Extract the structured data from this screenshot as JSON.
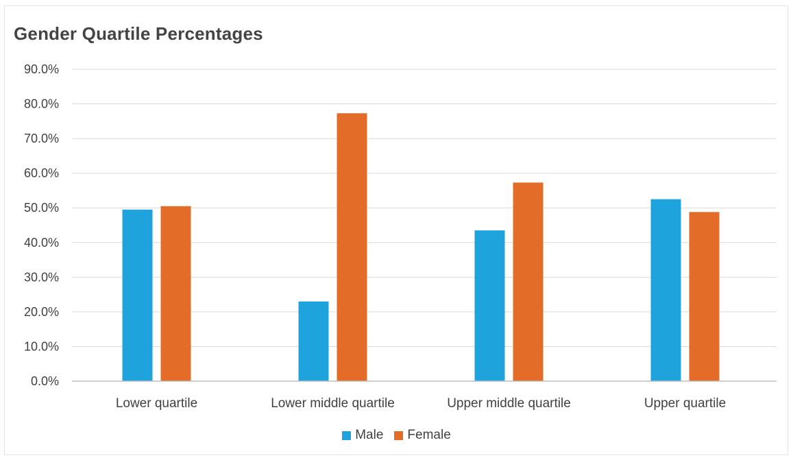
{
  "chart_data": {
    "type": "bar",
    "title": "Gender Quartile Percentages",
    "categories": [
      "Lower quartile",
      "Lower middle quartile",
      "Upper middle quartile",
      "Upper quartile"
    ],
    "series": [
      {
        "name": "Male",
        "color": "#1fa3dd",
        "values": [
          49.5,
          23.0,
          43.5,
          52.5
        ]
      },
      {
        "name": "Female",
        "color": "#e36c29",
        "values": [
          50.5,
          77.3,
          57.3,
          48.8
        ]
      }
    ],
    "ylim": [
      0,
      90
    ],
    "yticks": [
      "0.0%",
      "10.0%",
      "20.0%",
      "30.0%",
      "40.0%",
      "50.0%",
      "60.0%",
      "70.0%",
      "80.0%",
      "90.0%"
    ],
    "ytick_values": [
      0,
      10,
      20,
      30,
      40,
      50,
      60,
      70,
      80,
      90
    ],
    "grid": true,
    "legend_position": "bottom",
    "xlabel": "",
    "ylabel": ""
  }
}
